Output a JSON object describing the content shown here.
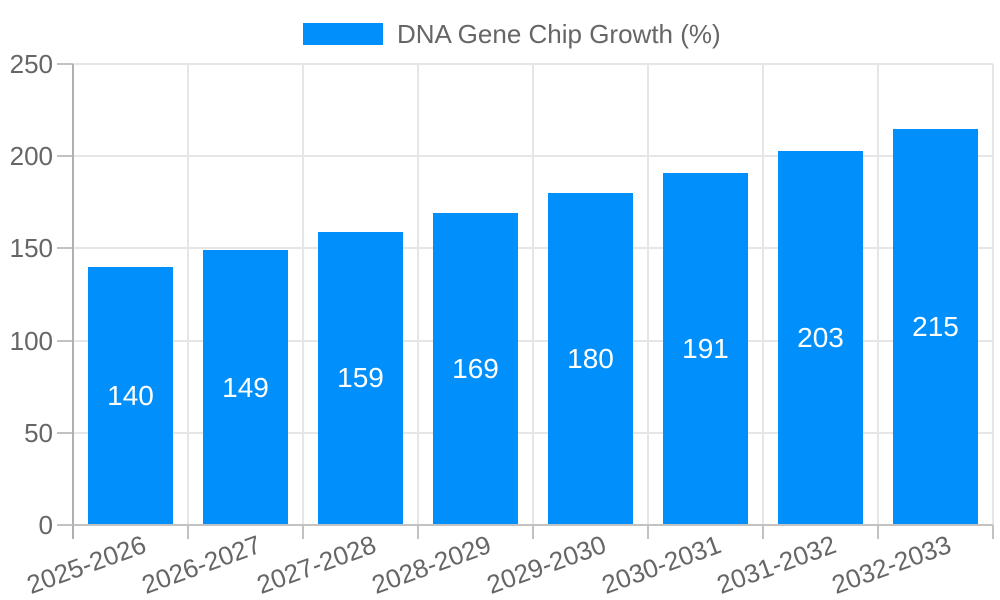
{
  "legend": {
    "label": "DNA Gene Chip Growth (%)"
  },
  "chart_data": {
    "type": "bar",
    "title": "DNA Gene Chip Growth (%)",
    "categories": [
      "2025-2026",
      "2026-2027",
      "2027-2028",
      "2028-2029",
      "2029-2030",
      "2030-2031",
      "2031-2032",
      "2032-2033"
    ],
    "values": [
      140,
      149,
      159,
      169,
      180,
      191,
      203,
      215
    ],
    "value_labels": [
      "140",
      "149",
      "159",
      "169",
      "180",
      "191",
      "203",
      "215"
    ],
    "xlabel": "",
    "ylabel": "",
    "ylim": [
      0,
      250
    ],
    "yticks": [
      0,
      50,
      100,
      150,
      200,
      250
    ],
    "ytick_labels": [
      "0",
      "50",
      "100",
      "150",
      "200",
      "250"
    ],
    "grid": true,
    "legend_position": "top",
    "x_label_rotation_deg": -20,
    "colors": {
      "bar": "#008FFB",
      "value_label": "#ffffff",
      "axis_text": "#666666",
      "gridline": "#e6e6e6",
      "axis_line": "#b0b0b0",
      "tick": "#c2c2c2",
      "background": "#ffffff"
    }
  }
}
